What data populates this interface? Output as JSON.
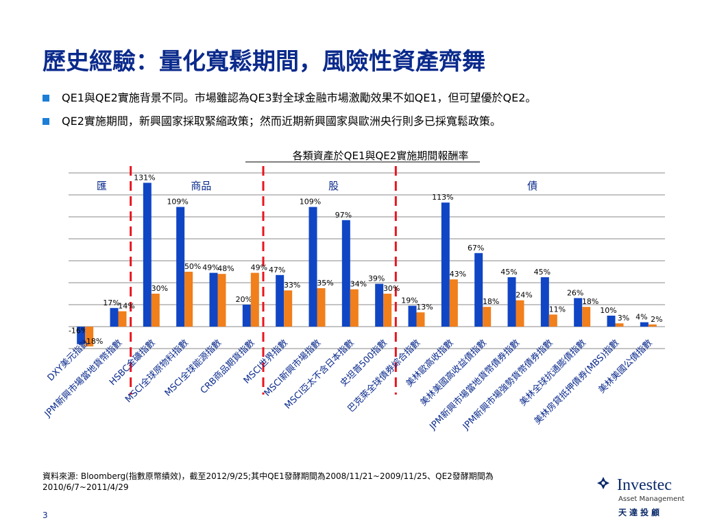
{
  "slide": {
    "title": "歷史經驗：量化寬鬆期間，風險性資產齊舞",
    "bullets": [
      "QE1與QE2實施背景不同。市場雖認為QE3對全球金融市場激勵效果不如QE1，但可望優於QE2。",
      "QE2實施期間，新興國家採取緊縮政策；然而近期新興國家與歐洲央行則多已採寬鬆政策。"
    ],
    "source_line1": "資料來源: Bloomberg(指數原幣績效)，截至2012/9/25;其中QE1發酵期間為2008/11/21~2009/11/25、QE2發酵期間為",
    "source_line2": "2010/6/7~2011/4/29",
    "page_number": "3"
  },
  "logo": {
    "name": "Investec",
    "subtitle": "Asset Management",
    "chinese": "天達投顧"
  },
  "chart_data": {
    "type": "bar",
    "title": "各類資產於QE1與QE2實施期間報酬率",
    "categories": [
      "DXY美元指數",
      "JPM新興市場當地貨幣指數",
      "HSBC金礦指數",
      "MSCI全球原物料指數",
      "MSCI全球能源指數",
      "CRB商品期貨指數",
      "MSCI世界指數",
      "MSCI新興市場指數",
      "MSCI亞太不含日本指數",
      "史坦普500指數",
      "巴克萊全球債券綜合指數",
      "美林歐高收指數",
      "美林美國高收益債指數",
      "JPM新興市場當地貨幣債券指數",
      "JPM新興市場強勢貨幣債券指數",
      "美林全球抗通膨債指數",
      "美林房貸抵押債券(MBS)指數",
      "美林美國公債指數"
    ],
    "series": [
      {
        "name": "QE1",
        "color": "#1046c4",
        "values": [
          -16,
          17,
          131,
          109,
          49,
          20,
          47,
          109,
          97,
          39,
          19,
          113,
          67,
          45,
          45,
          26,
          10,
          4
        ],
        "labels": [
          "-16%",
          "17%",
          "131%",
          "109%",
          "49%",
          "20%",
          "47%",
          "109%",
          "97%",
          "39%",
          "19%",
          "113%",
          "67%",
          "45%",
          "45%",
          "26%",
          "10%",
          "4%"
        ]
      },
      {
        "name": "QE2",
        "color": "#f07f1c",
        "values": [
          -18,
          14,
          30,
          50,
          48,
          49,
          33,
          35,
          34,
          30,
          13,
          43,
          18,
          24,
          11,
          18,
          3,
          2
        ],
        "labels": [
          "-18%",
          "14%",
          "30%",
          "50%",
          "48%",
          "49%",
          "33%",
          "35%",
          "34%",
          "30%",
          "13%",
          "43%",
          "18%",
          "24%",
          "11%",
          "18%",
          "3%",
          "2%"
        ]
      }
    ],
    "groups": [
      {
        "label": "匯",
        "start": 0,
        "end": 1
      },
      {
        "label": "商品",
        "start": 2,
        "end": 5
      },
      {
        "label": "股",
        "start": 6,
        "end": 9
      },
      {
        "label": "債",
        "start": 10,
        "end": 17
      }
    ],
    "ylim": [
      -20,
      140
    ],
    "grid": true,
    "legend": "none"
  }
}
